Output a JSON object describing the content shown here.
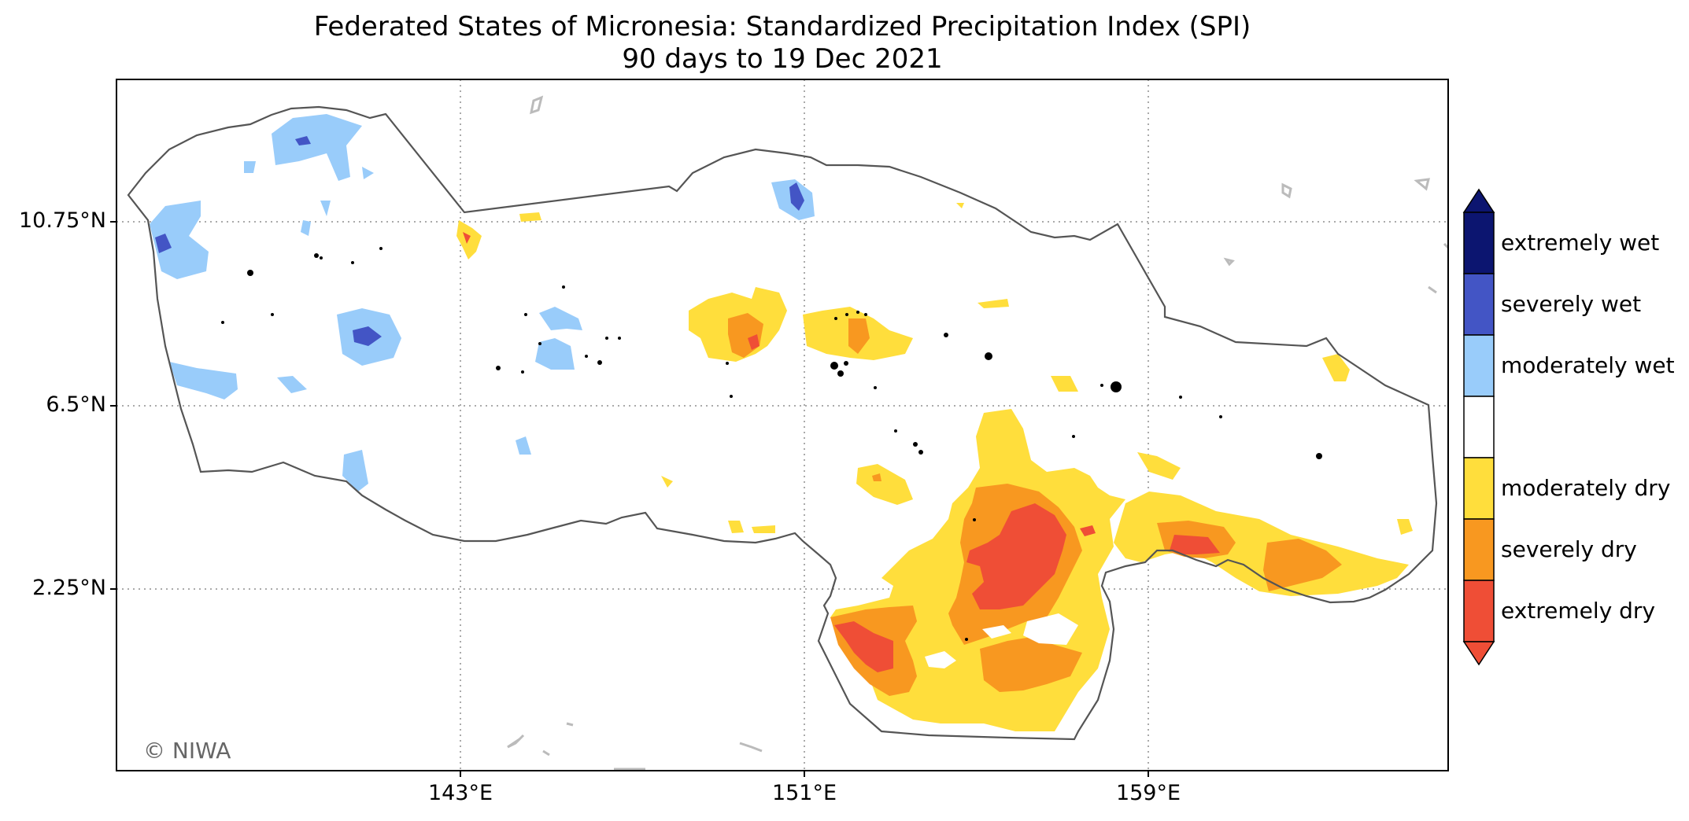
{
  "title": {
    "line1": "Federated States of Micronesia: Standardized Precipitation Index (SPI)",
    "line2": "90 days to 19 Dec 2021"
  },
  "axes": {
    "y_ticks": [
      "10.75°N",
      "6.5°N",
      "2.25°N"
    ],
    "x_ticks": [
      "143°E",
      "151°E",
      "159°E"
    ],
    "gridlines": "dotted"
  },
  "credit": "© NIWA",
  "legend": {
    "placement": "right",
    "entries": [
      {
        "label": "extremely wet",
        "color": "#0c1570"
      },
      {
        "label": "severely wet",
        "color": "#4355c5"
      },
      {
        "label": "moderately wet",
        "color": "#99ccfa"
      },
      {
        "label": "",
        "color": "#ffffff"
      },
      {
        "label": "moderately dry",
        "color": "#ffde3c"
      },
      {
        "label": "severely dry",
        "color": "#f89820"
      },
      {
        "label": "extremely dry",
        "color": "#ef4e36"
      }
    ]
  },
  "colors": {
    "boundary": "#555555",
    "land": "#000000",
    "grid": "#aaaaaa"
  }
}
